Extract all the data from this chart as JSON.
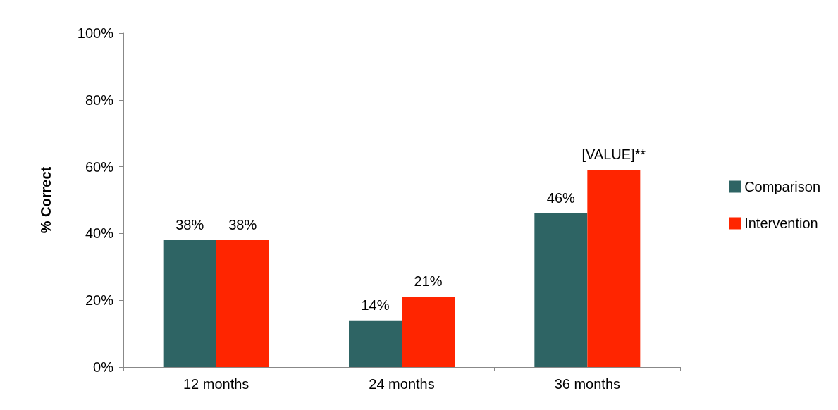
{
  "chart_data": {
    "type": "bar",
    "ylabel": "% Correct",
    "categories": [
      "12 months",
      "24 months",
      "36 months"
    ],
    "series": [
      {
        "name": "Comparison",
        "color": "#2e6464",
        "values": [
          38,
          14,
          46
        ],
        "value_labels": [
          "38%",
          "14%",
          "46%"
        ]
      },
      {
        "name": "Intervention",
        "color": "#ff2500",
        "values": [
          38,
          21,
          59
        ],
        "value_labels": [
          "38%",
          "21%",
          "[VALUE]**"
        ]
      }
    ],
    "ylim": [
      0,
      100
    ],
    "yticks": [
      {
        "value": 0,
        "label": "0%"
      },
      {
        "value": 20,
        "label": "20%"
      },
      {
        "value": 40,
        "label": "40%"
      },
      {
        "value": 60,
        "label": "60%"
      },
      {
        "value": 80,
        "label": "80%"
      },
      {
        "value": 100,
        "label": "100%"
      }
    ],
    "grid": false,
    "legend": "right"
  }
}
